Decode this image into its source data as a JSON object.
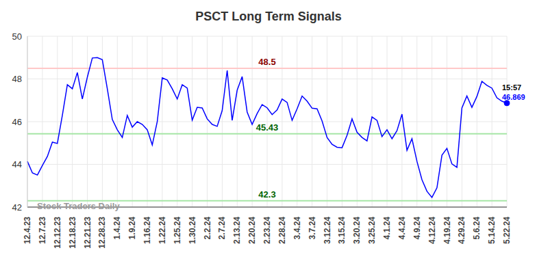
{
  "chart_data": {
    "type": "line",
    "title": "PSCT Long Term Signals",
    "watermark": "Stock Traders Daily",
    "categories": [
      "12.4.23",
      null,
      null,
      "12.7.23",
      null,
      null,
      "12.12.23",
      null,
      null,
      "12.18.23",
      null,
      null,
      "12.21.23",
      null,
      null,
      "12.28.23",
      null,
      null,
      "1.4.24",
      null,
      null,
      "1.9.24",
      null,
      null,
      "1.16.24",
      null,
      null,
      "1.22.24",
      null,
      null,
      "1.25.24",
      null,
      null,
      "1.30.24",
      null,
      null,
      "2.2.24",
      null,
      null,
      "2.7.24",
      null,
      null,
      "2.13.24",
      null,
      null,
      "2.20.24",
      null,
      null,
      "2.23.24",
      null,
      null,
      "2.28.24",
      null,
      null,
      "3.4.24",
      null,
      null,
      "3.7.24",
      null,
      null,
      "3.12.24",
      null,
      null,
      "3.15.24",
      null,
      null,
      "3.20.24",
      null,
      null,
      "3.25.24",
      null,
      null,
      "4.1.24",
      null,
      null,
      "4.4.24",
      null,
      null,
      "4.9.24",
      null,
      null,
      "4.12.24",
      null,
      null,
      "4.19.24",
      null,
      null,
      "4.29.24",
      null,
      null,
      "5.6.24",
      null,
      null,
      "5.14.24",
      null,
      null,
      "5.22.24"
    ],
    "values": [
      44.14,
      43.6,
      43.5,
      43.95,
      44.37,
      45.04,
      44.98,
      46.3,
      47.73,
      47.54,
      48.3,
      47.06,
      48.08,
      48.98,
      49.0,
      48.9,
      47.54,
      46.1,
      45.62,
      45.26,
      46.29,
      45.74,
      46.0,
      45.87,
      45.62,
      44.91,
      46.0,
      48.05,
      47.95,
      47.54,
      47.06,
      47.73,
      47.57,
      46.07,
      46.67,
      46.64,
      46.13,
      45.87,
      45.78,
      46.52,
      48.4,
      46.06,
      47.47,
      48.11,
      46.45,
      45.87,
      46.38,
      46.8,
      46.65,
      46.33,
      46.55,
      47.06,
      46.9,
      46.06,
      46.6,
      47.2,
      46.96,
      46.63,
      46.6,
      46.03,
      45.26,
      44.94,
      44.8,
      44.78,
      45.36,
      46.13,
      45.5,
      45.26,
      45.1,
      46.22,
      46.06,
      45.3,
      45.62,
      45.2,
      45.58,
      46.35,
      44.66,
      45.2,
      44.14,
      43.28,
      42.74,
      42.45,
      42.9,
      44.43,
      44.75,
      44.02,
      43.86,
      46.64,
      47.2,
      46.67,
      47.18,
      47.89,
      47.7,
      47.57,
      47.12,
      46.96,
      46.869
    ],
    "color": "#0000ff",
    "marker": "none",
    "ylim": [
      42,
      50
    ],
    "yticks": [
      42,
      44,
      46,
      48,
      50
    ],
    "grid": true,
    "reference_lines": [
      {
        "value": 48.5,
        "color": "#ffc8c8",
        "label_color": "#8b0000"
      },
      {
        "value": 45.43,
        "color": "#a6e6a6",
        "label_color": "#006400"
      },
      {
        "value": 42.3,
        "color": "#a6e6a6",
        "label_color": "#006400"
      }
    ],
    "last_point": {
      "time": "15:57",
      "value": 46.869,
      "color": "#0000ff"
    }
  }
}
